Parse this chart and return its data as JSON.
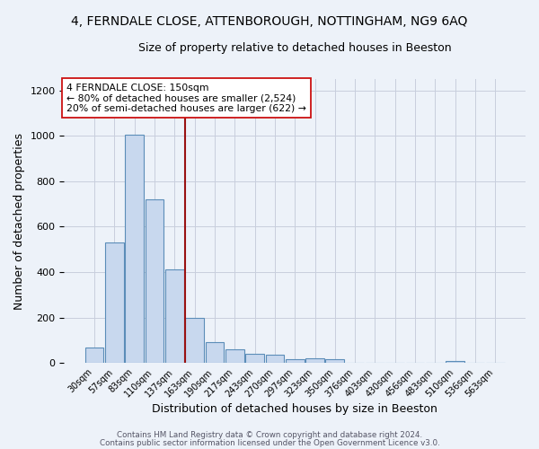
{
  "title1": "4, FERNDALE CLOSE, ATTENBOROUGH, NOTTINGHAM, NG9 6AQ",
  "title2": "Size of property relative to detached houses in Beeston",
  "xlabel": "Distribution of detached houses by size in Beeston",
  "ylabel": "Number of detached properties",
  "categories": [
    "30sqm",
    "57sqm",
    "83sqm",
    "110sqm",
    "137sqm",
    "163sqm",
    "190sqm",
    "217sqm",
    "243sqm",
    "270sqm",
    "297sqm",
    "323sqm",
    "350sqm",
    "376sqm",
    "403sqm",
    "430sqm",
    "456sqm",
    "483sqm",
    "510sqm",
    "536sqm",
    "563sqm"
  ],
  "values": [
    68,
    530,
    1005,
    720,
    410,
    200,
    90,
    60,
    40,
    35,
    15,
    22,
    18,
    0,
    0,
    0,
    0,
    0,
    10,
    0,
    0
  ],
  "bar_color": "#c8d8ee",
  "bar_edge_color": "#5b8db8",
  "vline_color": "#991111",
  "annotation_box_text": "4 FERNDALE CLOSE: 150sqm\n← 80% of detached houses are smaller (2,524)\n20% of semi-detached houses are larger (622) →",
  "ylim": [
    0,
    1250
  ],
  "yticks": [
    0,
    200,
    400,
    600,
    800,
    1000,
    1200
  ],
  "footer1": "Contains HM Land Registry data © Crown copyright and database right 2024.",
  "footer2": "Contains public sector information licensed under the Open Government Licence v3.0.",
  "background_color": "#edf2f9",
  "grid_color": "#c8cedd",
  "title1_fontsize": 10,
  "title2_fontsize": 9,
  "bar_width": 0.93
}
